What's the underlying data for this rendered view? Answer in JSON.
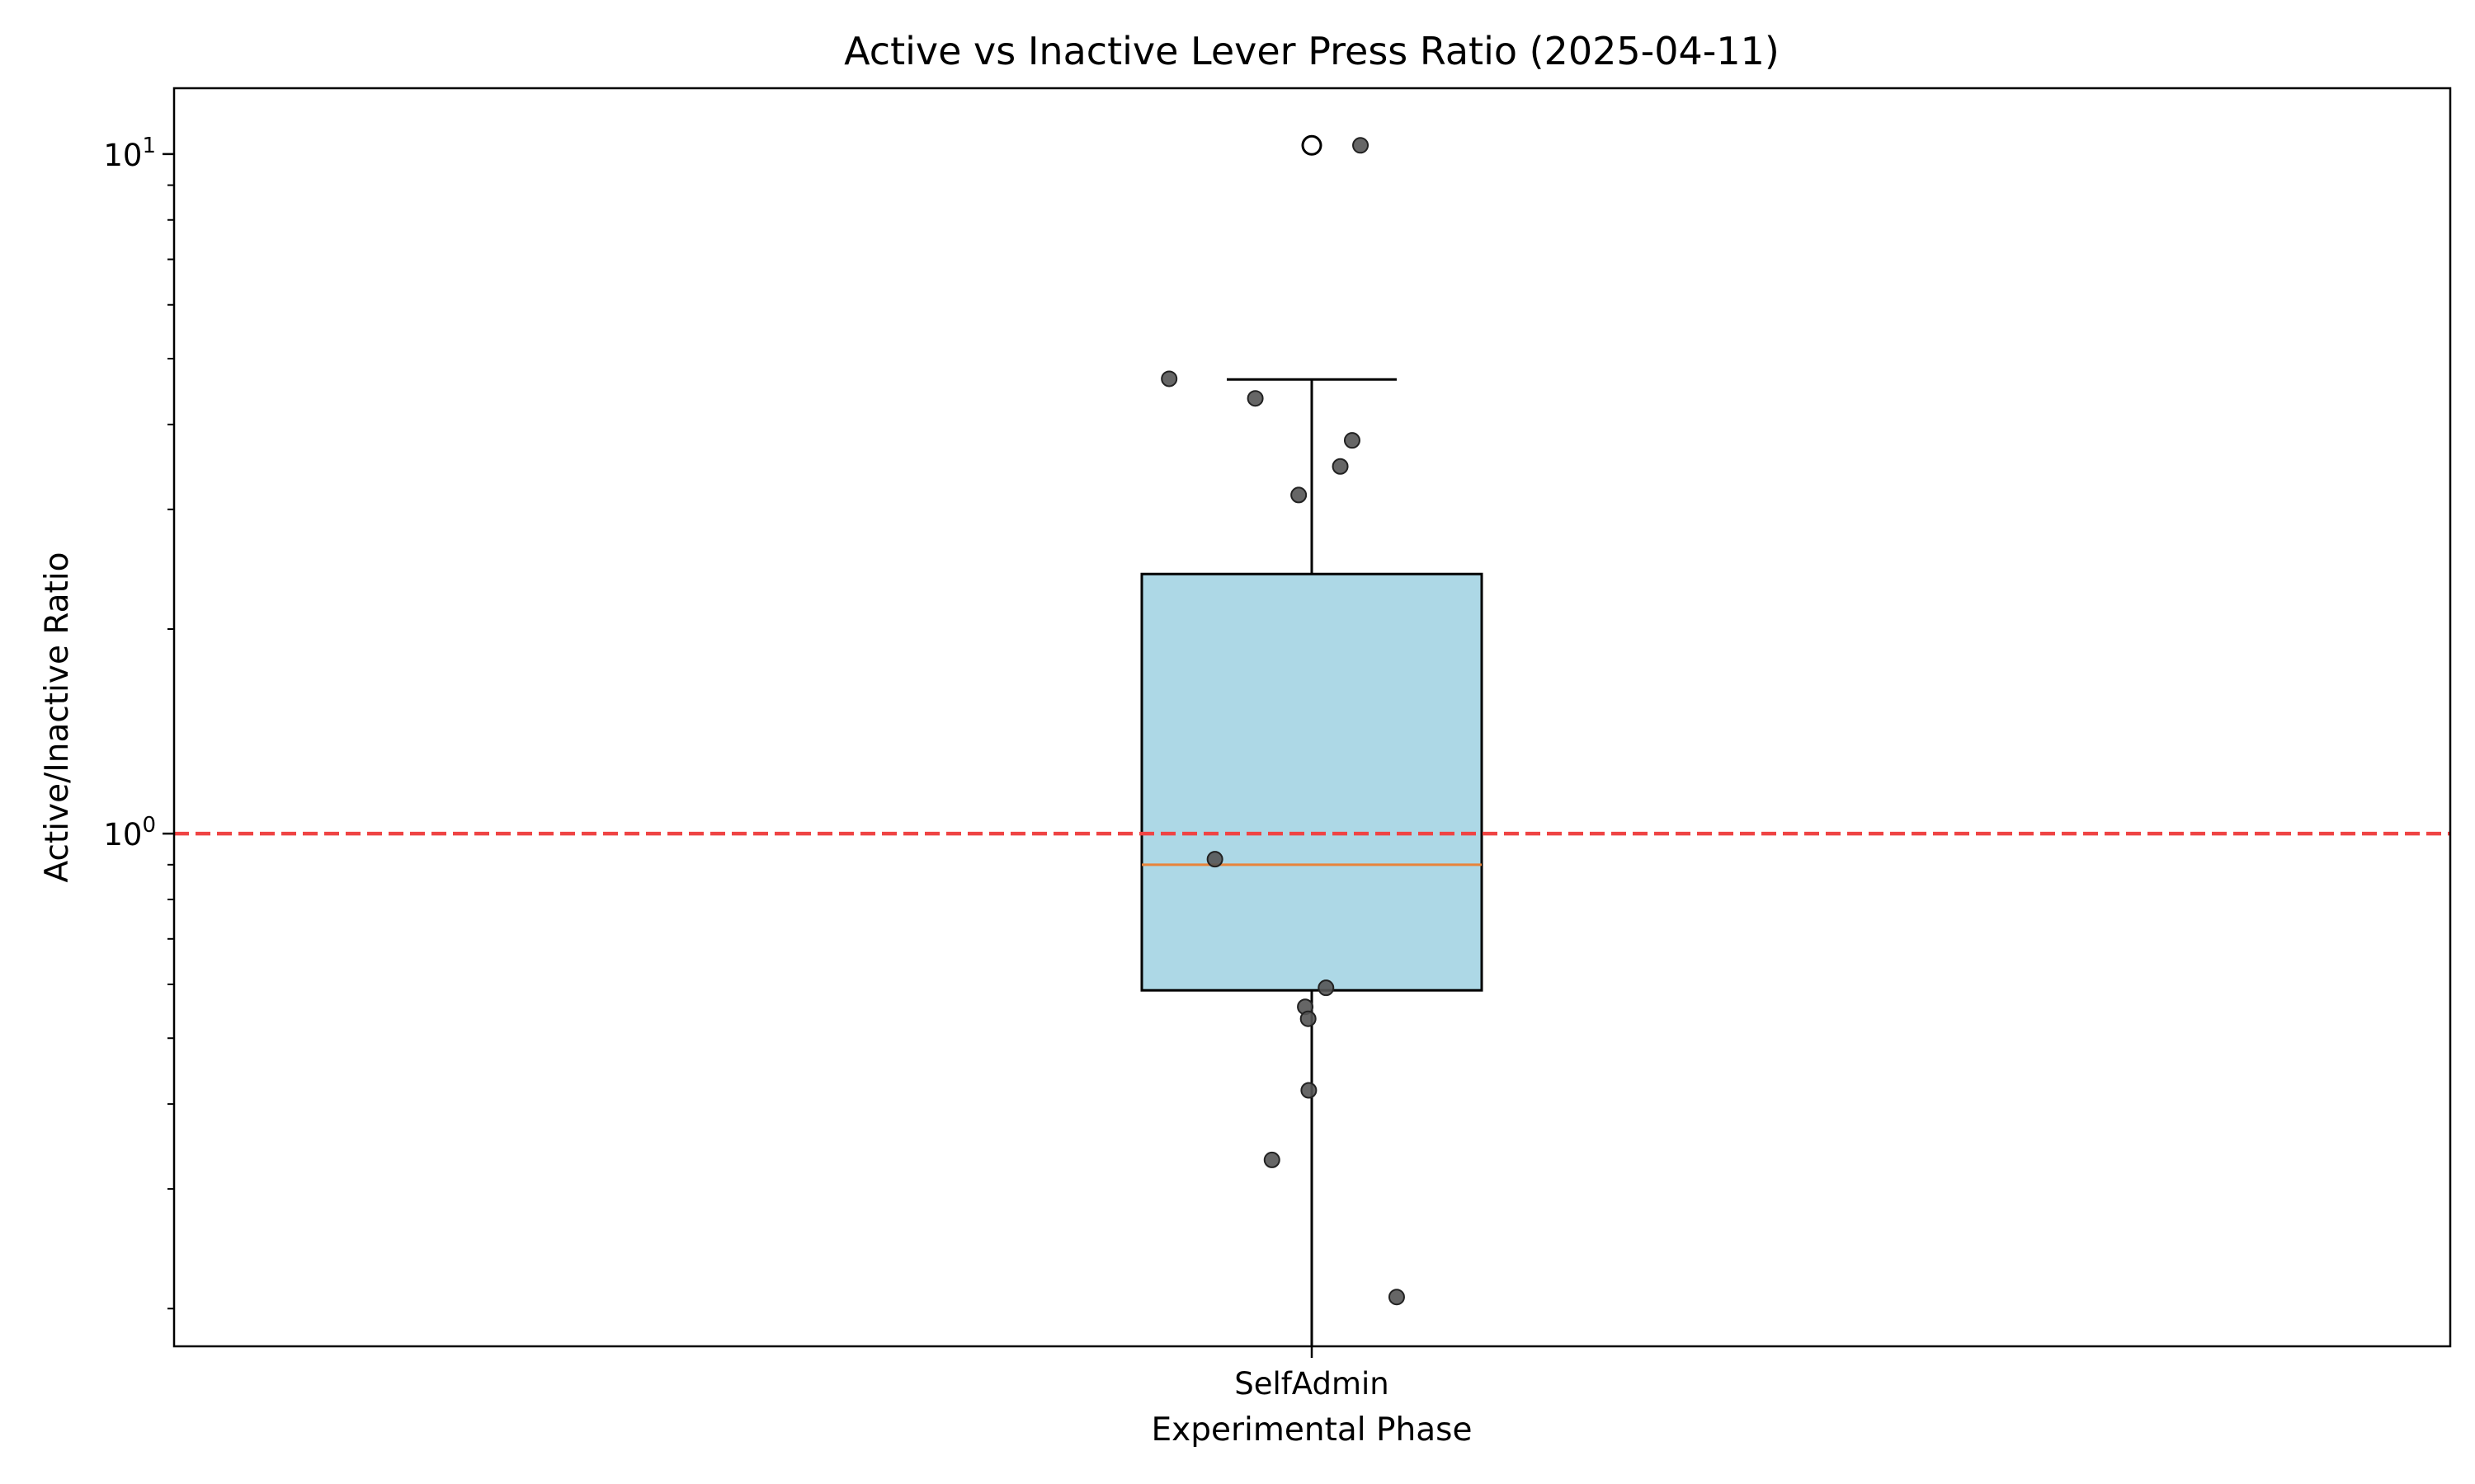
{
  "chart_data": {
    "type": "box",
    "title": "Active vs Inactive Lever Press Ratio (2025-04-11)",
    "xlabel": "Experimental Phase",
    "ylabel": "Active/Inactive Ratio",
    "categories": [
      "SelfAdmin"
    ],
    "yscale": "log",
    "ylim": [
      0.176,
      12.5
    ],
    "y_ticks": [
      {
        "value": 1,
        "base": "10",
        "exp": "0"
      },
      {
        "value": 10,
        "base": "10",
        "exp": "1"
      }
    ],
    "y_minor_ticks": [
      0.2,
      0.3,
      0.4,
      0.5,
      0.6,
      0.7,
      0.8,
      0.9,
      2,
      3,
      4,
      5,
      6,
      7,
      8,
      9
    ],
    "box": {
      "category": "SelfAdmin",
      "q1": 0.588,
      "median": 0.9,
      "q3": 2.41,
      "whisker_low": 0.176,
      "whisker_high": 4.66,
      "outliers": [
        10.3
      ]
    },
    "points": [
      {
        "x_offset": -0.24,
        "y": 4.67
      },
      {
        "x_offset": -0.095,
        "y": 4.37
      },
      {
        "x_offset": -0.022,
        "y": 3.15
      },
      {
        "x_offset": 0.048,
        "y": 3.47
      },
      {
        "x_offset": 0.068,
        "y": 3.79
      },
      {
        "x_offset": 0.082,
        "y": 10.3
      },
      {
        "x_offset": -0.163,
        "y": 0.917
      },
      {
        "x_offset": 0.024,
        "y": 0.593
      },
      {
        "x_offset": -0.011,
        "y": 0.556
      },
      {
        "x_offset": -0.006,
        "y": 0.534
      },
      {
        "x_offset": -0.005,
        "y": 0.419
      },
      {
        "x_offset": -0.067,
        "y": 0.331
      },
      {
        "x_offset": 0.143,
        "y": 0.208
      }
    ],
    "reference_line": {
      "y": 1.0,
      "style": "dashed",
      "color": "#ef4444"
    },
    "colors": {
      "box_fill": "#add8e6",
      "median": "#e8833a",
      "points": "#555555"
    },
    "grid": false,
    "legend": "none"
  }
}
